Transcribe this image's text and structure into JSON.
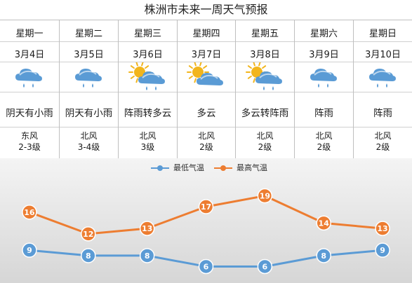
{
  "title": "株洲市未来一周天气预报",
  "days": [
    {
      "day": "星期一",
      "date": "3月4日",
      "icon": "cloud-rain-icon",
      "condition": "阴天有小雨",
      "wind": "东风",
      "level": "2-3级"
    },
    {
      "day": "星期二",
      "date": "3月5日",
      "icon": "cloud-rain-icon",
      "condition": "阴天有小雨",
      "wind": "北风",
      "level": "3-4级"
    },
    {
      "day": "星期三",
      "date": "3月6日",
      "icon": "sun-cloud-rain-icon",
      "condition": "阵雨转多云",
      "wind": "北风",
      "level": "3级"
    },
    {
      "day": "星期四",
      "date": "3月7日",
      "icon": "sun-cloud-icon",
      "condition": "多云",
      "wind": "北风",
      "level": "2级"
    },
    {
      "day": "星期五",
      "date": "3月8日",
      "icon": "sun-cloud-rain-icon",
      "condition": "多云转阵雨",
      "wind": "北风",
      "level": "2级"
    },
    {
      "day": "星期六",
      "date": "3月9日",
      "icon": "cloud-rain-icon",
      "condition": "阵雨",
      "wind": "北风",
      "level": "2级"
    },
    {
      "day": "星期日",
      "date": "3月10日",
      "icon": "cloud-rain-icon",
      "condition": "阵雨",
      "wind": "北风",
      "level": "2级"
    }
  ],
  "colors": {
    "low": "#5b9bd5",
    "high": "#ed7d31",
    "cloud": "#5a9bd5",
    "sun": "#f2b51c"
  },
  "chart_data": {
    "type": "line",
    "categories": [
      "3月4日",
      "3月5日",
      "3月6日",
      "3月7日",
      "3月8日",
      "3月9日",
      "3月10日"
    ],
    "series": [
      {
        "name": "最低气温",
        "values": [
          9,
          8,
          8,
          6,
          6,
          8,
          9
        ]
      },
      {
        "name": "最高气温",
        "values": [
          16,
          12,
          13,
          17,
          19,
          14,
          13
        ]
      }
    ],
    "legend_position": "top-center",
    "ylim": [
      4,
      21
    ],
    "grid": false
  }
}
